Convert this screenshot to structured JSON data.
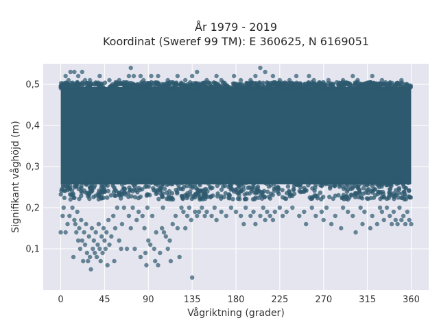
{
  "chart_data": {
    "type": "scatter",
    "title": [
      "År 1979 - 2019",
      "Koordinat (Sweref 99 TM): E 360625, N 6169051"
    ],
    "xlabel": "Vågriktning (grader)",
    "ylabel": "Signifikant våghöjd (m)",
    "xlim": [
      -18,
      378
    ],
    "ylim": [
      0.0,
      0.55
    ],
    "xticks": [
      0,
      45,
      90,
      135,
      180,
      225,
      270,
      315,
      360
    ],
    "yticks": [
      0.1,
      0.2,
      0.3,
      0.4,
      0.5
    ],
    "ytick_labels": [
      "0,1",
      "0,2",
      "0,3",
      "0,4",
      "0,5"
    ],
    "grid": true,
    "legend": "none",
    "colors": {
      "marker": "#2e5a6f",
      "plot_bg": "#e5e5ef",
      "grid": "#ffffff",
      "page_bg": "#ffffff"
    },
    "series": [
      {
        "dense_band": {
          "x_range": [
            0,
            360
          ],
          "y_range": [
            0.25,
            0.5
          ]
        },
        "points": [
          [
            0,
            0.14
          ],
          [
            2,
            0.18
          ],
          [
            3,
            0.2
          ],
          [
            5,
            0.14
          ],
          [
            7,
            0.16
          ],
          [
            9,
            0.18
          ],
          [
            10,
            0.22
          ],
          [
            12,
            0.2
          ],
          [
            13,
            0.08
          ],
          [
            14,
            0.17
          ],
          [
            15,
            0.16
          ],
          [
            16,
            0.14
          ],
          [
            17,
            0.19
          ],
          [
            18,
            0.12
          ],
          [
            19,
            0.15
          ],
          [
            20,
            0.1
          ],
          [
            21,
            0.17
          ],
          [
            22,
            0.12
          ],
          [
            23,
            0.07
          ],
          [
            24,
            0.14
          ],
          [
            25,
            0.11
          ],
          [
            26,
            0.16
          ],
          [
            27,
            0.09
          ],
          [
            28,
            0.07
          ],
          [
            29,
            0.13
          ],
          [
            30,
            0.08
          ],
          [
            31,
            0.05
          ],
          [
            32,
            0.15
          ],
          [
            33,
            0.1
          ],
          [
            34,
            0.12
          ],
          [
            35,
            0.09
          ],
          [
            36,
            0.14
          ],
          [
            37,
            0.08
          ],
          [
            38,
            0.11
          ],
          [
            39,
            0.16
          ],
          [
            40,
            0.1
          ],
          [
            41,
            0.07
          ],
          [
            42,
            0.13
          ],
          [
            43,
            0.09
          ],
          [
            44,
            0.15
          ],
          [
            45,
            0.12
          ],
          [
            46,
            0.1
          ],
          [
            47,
            0.14
          ],
          [
            48,
            0.06
          ],
          [
            49,
            0.17
          ],
          [
            50,
            0.11
          ],
          [
            52,
            0.13
          ],
          [
            54,
            0.18
          ],
          [
            55,
            0.07
          ],
          [
            56,
            0.15
          ],
          [
            58,
            0.2
          ],
          [
            60,
            0.12
          ],
          [
            62,
            0.1
          ],
          [
            63,
            0.16
          ],
          [
            65,
            0.2
          ],
          [
            68,
            0.1
          ],
          [
            70,
            0.18
          ],
          [
            72,
            0.15
          ],
          [
            74,
            0.2
          ],
          [
            76,
            0.1
          ],
          [
            78,
            0.17
          ],
          [
            80,
            0.19
          ],
          [
            82,
            0.08
          ],
          [
            84,
            0.18
          ],
          [
            86,
            0.15
          ],
          [
            87,
            0.09
          ],
          [
            88,
            0.06
          ],
          [
            89,
            0.2
          ],
          [
            90,
            0.12
          ],
          [
            92,
            0.11
          ],
          [
            94,
            0.18
          ],
          [
            96,
            0.1
          ],
          [
            97,
            0.07
          ],
          [
            98,
            0.14
          ],
          [
            100,
            0.06
          ],
          [
            102,
            0.09
          ],
          [
            104,
            0.15
          ],
          [
            105,
            0.2
          ],
          [
            106,
            0.14
          ],
          [
            108,
            0.13
          ],
          [
            110,
            0.1
          ],
          [
            112,
            0.12
          ],
          [
            113,
            0.07
          ],
          [
            115,
            0.16
          ],
          [
            118,
            0.18
          ],
          [
            120,
            0.15
          ],
          [
            122,
            0.08
          ],
          [
            124,
            0.2
          ],
          [
            126,
            0.19
          ],
          [
            128,
            0.15
          ],
          [
            130,
            0.18
          ],
          [
            132,
            0.2
          ],
          [
            134,
            0.17
          ],
          [
            135,
            0.03
          ],
          [
            138,
            0.19
          ],
          [
            140,
            0.18
          ],
          [
            142,
            0.19
          ],
          [
            145,
            0.2
          ],
          [
            148,
            0.18
          ],
          [
            150,
            0.19
          ],
          [
            155,
            0.18
          ],
          [
            158,
            0.2
          ],
          [
            160,
            0.17
          ],
          [
            165,
            0.19
          ],
          [
            170,
            0.18
          ],
          [
            175,
            0.2
          ],
          [
            180,
            0.19
          ],
          [
            185,
            0.18
          ],
          [
            188,
            0.16
          ],
          [
            190,
            0.2
          ],
          [
            195,
            0.18
          ],
          [
            198,
            0.19
          ],
          [
            200,
            0.16
          ],
          [
            205,
            0.18
          ],
          [
            208,
            0.2
          ],
          [
            210,
            0.17
          ],
          [
            212,
            0.19
          ],
          [
            215,
            0.18
          ],
          [
            218,
            0.17
          ],
          [
            220,
            0.19
          ],
          [
            225,
            0.2
          ],
          [
            228,
            0.18
          ],
          [
            232,
            0.19
          ],
          [
            238,
            0.2
          ],
          [
            245,
            0.18
          ],
          [
            250,
            0.19
          ],
          [
            252,
            0.16
          ],
          [
            258,
            0.2
          ],
          [
            262,
            0.18
          ],
          [
            268,
            0.19
          ],
          [
            270,
            0.17
          ],
          [
            273,
            0.2
          ],
          [
            278,
            0.16
          ],
          [
            282,
            0.18
          ],
          [
            288,
            0.15
          ],
          [
            290,
            0.2
          ],
          [
            295,
            0.19
          ],
          [
            300,
            0.18
          ],
          [
            303,
            0.14
          ],
          [
            308,
            0.2
          ],
          [
            310,
            0.16
          ],
          [
            312,
            0.19
          ],
          [
            318,
            0.15
          ],
          [
            320,
            0.18
          ],
          [
            325,
            0.16
          ],
          [
            328,
            0.2
          ],
          [
            330,
            0.19
          ],
          [
            332,
            0.17
          ],
          [
            335,
            0.2
          ],
          [
            338,
            0.18
          ],
          [
            340,
            0.16
          ],
          [
            342,
            0.19
          ],
          [
            344,
            0.17
          ],
          [
            346,
            0.16
          ],
          [
            348,
            0.2
          ],
          [
            350,
            0.17
          ],
          [
            352,
            0.18
          ],
          [
            354,
            0.16
          ],
          [
            356,
            0.19
          ],
          [
            358,
            0.17
          ],
          [
            360,
            0.16
          ],
          [
            10,
            0.53
          ],
          [
            14,
            0.53
          ],
          [
            22,
            0.53
          ],
          [
            5,
            0.52
          ],
          [
            18,
            0.52
          ],
          [
            40,
            0.52
          ],
          [
            70,
            0.52
          ],
          [
            72,
            0.54
          ],
          [
            75,
            0.52
          ],
          [
            82,
            0.52
          ],
          [
            93,
            0.52
          ],
          [
            100,
            0.52
          ],
          [
            120,
            0.52
          ],
          [
            135,
            0.52
          ],
          [
            140,
            0.53
          ],
          [
            160,
            0.52
          ],
          [
            178,
            0.52
          ],
          [
            200,
            0.52
          ],
          [
            205,
            0.54
          ],
          [
            210,
            0.53
          ],
          [
            218,
            0.52
          ],
          [
            242,
            0.52
          ],
          [
            255,
            0.52
          ],
          [
            300,
            0.52
          ],
          [
            320,
            0.52
          ],
          [
            8,
            0.51
          ],
          [
            25,
            0.51
          ],
          [
            30,
            0.51
          ],
          [
            50,
            0.51
          ],
          [
            60,
            0.51
          ],
          [
            85,
            0.51
          ],
          [
            110,
            0.51
          ],
          [
            128,
            0.51
          ],
          [
            150,
            0.51
          ],
          [
            165,
            0.51
          ],
          [
            185,
            0.51
          ],
          [
            195,
            0.51
          ],
          [
            225,
            0.51
          ],
          [
            235,
            0.51
          ],
          [
            260,
            0.51
          ],
          [
            275,
            0.51
          ],
          [
            290,
            0.51
          ],
          [
            305,
            0.51
          ],
          [
            330,
            0.51
          ],
          [
            350,
            0.51
          ]
        ]
      }
    ]
  }
}
